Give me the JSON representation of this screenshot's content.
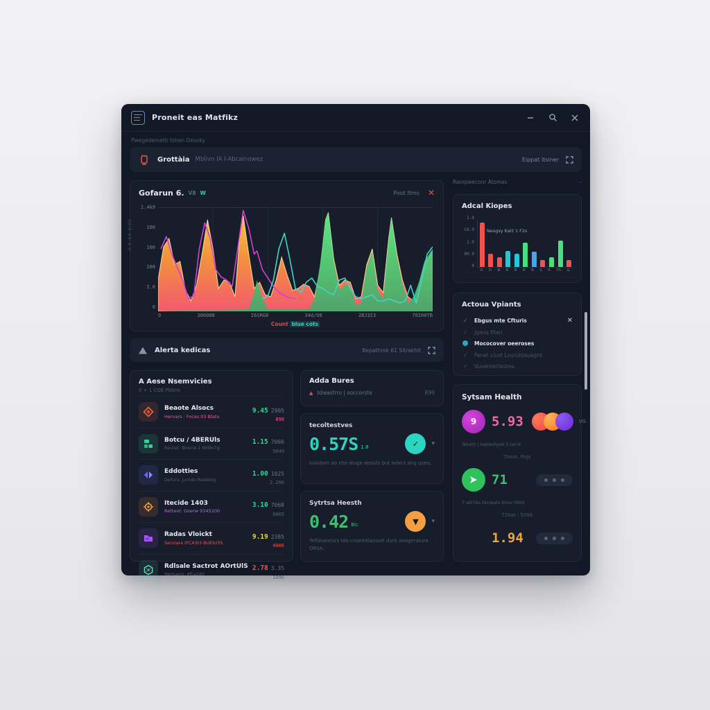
{
  "window": {
    "title": "Proneit eas Matfikz",
    "subheader": "Pwegedemeth tshen Desoky",
    "controls": {
      "minimize": "–",
      "search": "search",
      "close": "✕"
    }
  },
  "toolbar": {
    "name": "Grottàia",
    "desc": "Mblivn IA I-Abcainowez",
    "action": "Eippat Itsiner"
  },
  "chart_panel": {
    "title": "Gofarun 6.",
    "badge1": "V8",
    "badge2": "W",
    "action": "Poot Itms",
    "close": "✕",
    "caption_red": "Count",
    "caption_teal": "blue cots",
    "y_axis_label": "0·6:04-9/00"
  },
  "alerts_bar": {
    "title": "Alerta kedicas",
    "action": "Bepathrok 61 Sitrakhit"
  },
  "services": {
    "title": "A Aese Nsemvicies",
    "subtitle": "0 + 1 CQE Pbtins",
    "rows": [
      {
        "name": "Beaote Alsocs",
        "sub": "Hervars : Foces 03 Blato",
        "v1": "9.45",
        "v2": "2905",
        "v3": "890",
        "icon": "diamond-icon"
      },
      {
        "name": "Botcu / 4BERUls",
        "sub": "Revtat: Boena 1 WrBo7g",
        "v1": "1.15",
        "v2": "7066",
        "v3": "9049",
        "icon": "bricks-icon"
      },
      {
        "name": "Eddotties",
        "sub": "Defurs: Junido Reebing",
        "v1": "1.00",
        "v2": "1025",
        "v3": "2.200",
        "icon": "arrows-icon"
      },
      {
        "name": "Itecide 1403",
        "sub": "Retteot: Goerw 9345200",
        "v1": "3.10",
        "v2": "7068",
        "v3": "0065",
        "icon": "gear-icon"
      },
      {
        "name": "Radas Vloickt",
        "sub": "Serviara IFCA3I3 BUEIU3S",
        "v1": "9.19",
        "v2": "2385",
        "v3": "4006",
        "icon": "folder-icon"
      },
      {
        "name": "Rdlsale Sactrot AOrtUlS",
        "sub": "Hertuers: Afta2d0",
        "v1": "2.78",
        "v2": "3.35",
        "v3": "1096",
        "icon": "hexagon-icon"
      }
    ]
  },
  "middle": {
    "header": "Adda Bures",
    "alert_icon": "▲",
    "alert_text": "Idieastrro | ooccorste",
    "alert_right": "R99",
    "card1": {
      "label": "tecoltestves",
      "value": "0.57S",
      "unit": "1.8",
      "caption": "Ivisidam ao rrte diuge deduls but select airg ques.",
      "button_glyph": "✓",
      "chevron": "▾"
    },
    "card2": {
      "label": "Sytrtsa Heesth",
      "value": "0.42",
      "unit": "Blc",
      "caption": "TefGnamlvrs tds-cnsemtlanoah dunt aoegerstura O6SA.",
      "button_glyph": "▼",
      "chevron": "▾"
    }
  },
  "right": {
    "header": "Raoqiweconr Atsmas",
    "header_action": "–",
    "checklist": {
      "title": "Actoua Vpiants",
      "close": "✕",
      "items": [
        {
          "mark": "✓",
          "label": "Ebgus mte Cfturis",
          "state": "bright"
        },
        {
          "mark": "✓",
          "label": "Jgaoq fitan",
          "state": "dim"
        },
        {
          "mark": "dot",
          "label": "Mococover oeeroses",
          "state": "bright"
        },
        {
          "mark": "✓",
          "label": "Fenet ciust Louruldauegnt",
          "state": "dim"
        },
        {
          "mark": "✓",
          "label": "Vuventertestea.",
          "state": "dimmer"
        }
      ]
    },
    "health": {
      "title": "Sytsam Health",
      "stat1_badge": "9",
      "stat1_value": "5.93",
      "stat1_tag": "VG",
      "line1": "Tetat0 | Ioeteotyzd 3 tarck",
      "sublabel1": "Theot. Rigs",
      "stat2_value": "71",
      "line2": "7 ett76s  Gmwalv b0ov I0tld",
      "sublabel2": "T2eat : 5096",
      "stat3_value": "1.94"
    }
  },
  "colors": {
    "accent_teal": "#2dd4bf",
    "accent_green": "#34d399",
    "accent_red": "#ef5350",
    "accent_orange": "#f59e42",
    "accent_magenta": "#d946ef",
    "accent_pink": "#ec5f96",
    "accent_yellow": "#e3d44a",
    "panel_bg": "#171d2a",
    "window_bg": "#131826"
  },
  "chart_data": [
    {
      "type": "area",
      "title": "Gofarun 6.",
      "y_ticks": [
        "1.4k9",
        "100",
        "100",
        "108",
        "2.0",
        "0"
      ],
      "x_ticks": [
        "0",
        "30608B",
        "I6SRG8",
        "34d/O0",
        "2BJ3I3",
        "70I60TB"
      ],
      "ylim": [
        0,
        1400
      ],
      "grid": true,
      "legend_position": "none",
      "series": [
        {
          "name": "orange-area",
          "kind": "area",
          "paint": "orange",
          "points": [
            [
              0,
              30
            ],
            [
              2,
              62
            ],
            [
              4,
              70
            ],
            [
              6,
              45
            ],
            [
              8,
              48
            ],
            [
              10,
              20
            ],
            [
              12,
              10
            ],
            [
              14,
              25
            ],
            [
              16,
              55
            ],
            [
              18,
              88
            ],
            [
              20,
              60
            ],
            [
              22,
              22
            ],
            [
              24,
              30
            ],
            [
              26,
              28
            ],
            [
              28,
              14
            ],
            [
              30,
              80
            ],
            [
              31,
              92
            ],
            [
              33,
              55
            ],
            [
              35,
              22
            ],
            [
              37,
              28
            ],
            [
              39,
              16
            ],
            [
              41,
              14
            ],
            [
              43,
              30
            ],
            [
              45,
              52
            ],
            [
              47,
              35
            ],
            [
              49,
              20
            ],
            [
              51,
              22
            ],
            [
              53,
              26
            ],
            [
              55,
              24
            ],
            [
              57,
              14
            ],
            [
              59,
              40
            ],
            [
              61,
              88
            ],
            [
              62,
              95
            ],
            [
              64,
              50
            ],
            [
              66,
              25
            ],
            [
              68,
              30
            ],
            [
              70,
              28
            ],
            [
              72,
              12
            ],
            [
              74,
              14
            ],
            [
              76,
              45
            ],
            [
              78,
              60
            ],
            [
              80,
              25
            ],
            [
              82,
              18
            ],
            [
              84,
              70
            ],
            [
              85,
              90
            ],
            [
              87,
              55
            ],
            [
              89,
              30
            ],
            [
              91,
              14
            ],
            [
              93,
              10
            ],
            [
              95,
              25
            ],
            [
              97,
              45
            ],
            [
              100,
              58
            ]
          ]
        },
        {
          "name": "green-area",
          "kind": "area",
          "paint": "green",
          "points": [
            [
              33,
              2
            ],
            [
              35,
              18
            ],
            [
              36,
              30
            ],
            [
              38,
              12
            ],
            [
              40,
              2
            ],
            [
              55,
              2
            ],
            [
              57,
              12
            ],
            [
              59,
              45
            ],
            [
              61,
              88
            ],
            [
              62,
              95
            ],
            [
              64,
              48
            ],
            [
              66,
              20
            ],
            [
              68,
              26
            ],
            [
              70,
              24
            ],
            [
              72,
              6
            ],
            [
              74,
              8
            ],
            [
              76,
              42
            ],
            [
              78,
              58
            ],
            [
              80,
              20
            ],
            [
              82,
              12
            ],
            [
              84,
              68
            ],
            [
              85,
              90
            ],
            [
              87,
              52
            ],
            [
              89,
              26
            ],
            [
              91,
              8
            ],
            [
              93,
              14
            ],
            [
              95,
              28
            ],
            [
              97,
              48
            ],
            [
              100,
              60
            ]
          ]
        },
        {
          "name": "magenta-line",
          "kind": "line",
          "paint": "magenta",
          "points": [
            [
              1,
              60
            ],
            [
              3,
              72
            ],
            [
              5,
              55
            ],
            [
              7,
              42
            ],
            [
              9,
              30
            ],
            [
              11,
              12
            ],
            [
              13,
              15
            ],
            [
              15,
              60
            ],
            [
              17,
              85
            ],
            [
              19,
              70
            ],
            [
              21,
              40
            ],
            [
              23,
              33
            ],
            [
              25,
              30
            ],
            [
              27,
              24
            ],
            [
              29,
              60
            ],
            [
              31,
              97
            ],
            [
              33,
              80
            ],
            [
              35,
              55
            ],
            [
              36,
              58
            ],
            [
              38,
              40
            ],
            [
              40,
              32
            ],
            [
              42,
              24
            ],
            [
              44,
              18
            ],
            [
              46,
              15
            ],
            [
              48,
              13
            ],
            [
              50,
              12
            ]
          ]
        },
        {
          "name": "teal-line",
          "kind": "line",
          "paint": "teal",
          "points": [
            [
              38,
              12
            ],
            [
              40,
              15
            ],
            [
              42,
              30
            ],
            [
              44,
              60
            ],
            [
              46,
              75
            ],
            [
              48,
              50
            ],
            [
              50,
              22
            ],
            [
              52,
              18
            ],
            [
              54,
              28
            ],
            [
              56,
              32
            ],
            [
              58,
              24
            ],
            [
              60,
              22
            ],
            [
              62,
              18
            ],
            [
              64,
              16
            ],
            [
              66,
              30
            ],
            [
              68,
              32
            ],
            [
              70,
              22
            ],
            [
              72,
              14
            ],
            [
              74,
              12
            ],
            [
              76,
              14
            ],
            [
              78,
              16
            ],
            [
              80,
              10
            ],
            [
              82,
              10
            ],
            [
              84,
              12
            ],
            [
              86,
              10
            ],
            [
              88,
              8
            ],
            [
              90,
              10
            ],
            [
              92,
              25
            ],
            [
              94,
              8
            ],
            [
              96,
              30
            ],
            [
              98,
              55
            ],
            [
              100,
              62
            ]
          ]
        }
      ]
    },
    {
      "type": "bar",
      "title": "Adcal Kiopes",
      "annotation": "Nesgsy Katt 1 F2s",
      "y_ticks": [
        "1.0",
        "C0.9",
        "1.0",
        "00.9",
        "0"
      ],
      "categories": [
        "O",
        "D",
        "B",
        "R",
        "R",
        "R",
        "R",
        "S",
        "R",
        "Th",
        "G"
      ],
      "values": [
        0.92,
        0.27,
        0.2,
        0.33,
        0.27,
        0.5,
        0.32,
        0.15,
        0.2,
        0.55,
        0.15
      ],
      "bar_colors": [
        "#ef5350",
        "#ef5350",
        "#ef5350",
        "#26c6da",
        "#26c6da",
        "#4ade80",
        "#42a5f5",
        "#ef5350",
        "#4ade80",
        "#4ade80",
        "#ef5350"
      ],
      "ylim": [
        0,
        1
      ],
      "grid": false,
      "legend_position": "none"
    }
  ]
}
